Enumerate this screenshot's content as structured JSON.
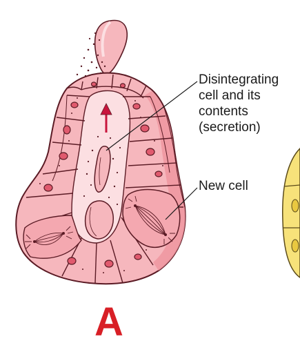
{
  "labels": {
    "secretion_lines": [
      "Disintegrating",
      "cell and its",
      "contents",
      "(secretion)"
    ],
    "new_cell": "New cell",
    "panel": "A"
  },
  "colors": {
    "outline": "#5a1a24",
    "cell_fill": "#f6b7bd",
    "cell_fill_dark": "#ee96a0",
    "lumen_fill": "#fcdfe2",
    "nucleus": "#e05a6e",
    "panel_letter": "#d81f26",
    "neighbor_fill": "#f7e27a",
    "arrow": "#c8143c"
  }
}
